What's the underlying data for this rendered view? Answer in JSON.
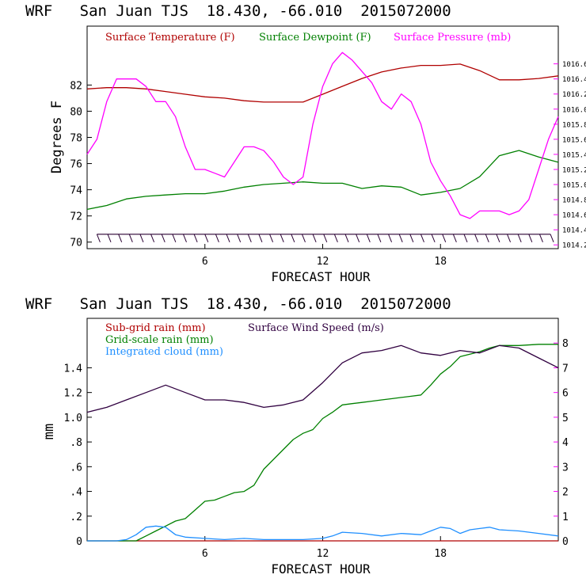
{
  "chart_data": [
    {
      "type": "line",
      "title": "WRF   San Juan TJS  18.430, -66.010  2015072000",
      "xlabel": "FORECAST HOUR",
      "ylabel": "Degrees F",
      "xlim": [
        0,
        24
      ],
      "ylim": [
        69.5,
        86.5
      ],
      "xticks": [
        6,
        12,
        18
      ],
      "yticks": [
        70,
        72,
        74,
        76,
        78,
        80,
        82
      ],
      "y2lim": [
        1014.15,
        1017.1
      ],
      "y2ticks": [
        1014.2,
        1014.4,
        1014.6,
        1014.8,
        1015.0,
        1015.2,
        1015.4,
        1015.6,
        1015.8,
        1016.0,
        1016.2,
        1016.4,
        1016.6
      ],
      "y2tick_labels": [
        "1014.2",
        "1014.4",
        "1014.6",
        "1014.8",
        "1015.0",
        "1015.2",
        "1015.4",
        "1015.6",
        "1015.8",
        "1016.0",
        "1016.2",
        "1016.4",
        "1016.6"
      ],
      "legend_placement": "top-left, horizontal",
      "series": [
        {
          "name": "Surface Temperature (F)",
          "color": "#b00000",
          "axis": "left",
          "x": [
            0,
            1,
            2,
            3,
            4,
            5,
            6,
            7,
            8,
            9,
            10,
            11,
            12,
            13,
            14,
            15,
            16,
            17,
            18,
            19,
            20,
            21,
            22,
            23,
            24
          ],
          "y": [
            81.7,
            81.8,
            81.8,
            81.7,
            81.5,
            81.3,
            81.1,
            81.0,
            80.8,
            80.7,
            80.7,
            80.7,
            81.3,
            81.9,
            82.5,
            83.0,
            83.3,
            83.5,
            83.5,
            83.6,
            83.1,
            82.4,
            82.4,
            82.5,
            82.7
          ]
        },
        {
          "name": "Surface Dewpoint (F)",
          "color": "#008000",
          "axis": "left",
          "x": [
            0,
            1,
            2,
            3,
            4,
            5,
            6,
            7,
            8,
            9,
            10,
            11,
            12,
            13,
            14,
            15,
            16,
            17,
            18,
            19,
            20,
            21,
            22,
            23,
            24
          ],
          "y": [
            72.5,
            72.8,
            73.3,
            73.5,
            73.6,
            73.7,
            73.7,
            73.9,
            74.2,
            74.4,
            74.5,
            74.6,
            74.5,
            74.5,
            74.1,
            74.3,
            74.2,
            73.6,
            73.8,
            74.1,
            75.0,
            76.6,
            77.0,
            76.5,
            76.1
          ]
        },
        {
          "name": "Surface Pressure (mb)",
          "color": "#ff00ff",
          "axis": "right",
          "x": [
            0,
            0.5,
            1,
            1.5,
            2,
            2.5,
            3,
            3.5,
            4,
            4.5,
            5,
            5.5,
            6,
            6.5,
            7,
            7.5,
            8,
            8.5,
            9,
            9.5,
            10,
            10.5,
            11,
            11.5,
            12,
            12.5,
            13,
            13.5,
            14,
            14.5,
            15,
            15.5,
            16,
            16.5,
            17,
            17.5,
            18,
            18.5,
            19,
            19.5,
            20,
            20.5,
            21,
            21.5,
            22,
            22.5,
            23,
            23.5,
            24
          ],
          "y": [
            1015.4,
            1015.6,
            1016.1,
            1016.4,
            1016.4,
            1016.4,
            1016.3,
            1016.1,
            1016.1,
            1015.9,
            1015.5,
            1015.2,
            1015.2,
            1015.15,
            1015.1,
            1015.3,
            1015.5,
            1015.5,
            1015.45,
            1015.3,
            1015.1,
            1015.0,
            1015.1,
            1015.8,
            1016.3,
            1016.6,
            1016.75,
            1016.65,
            1016.5,
            1016.35,
            1016.1,
            1016.0,
            1016.2,
            1016.1,
            1015.8,
            1015.3,
            1015.05,
            1014.85,
            1014.6,
            1014.55,
            1014.65,
            1014.65,
            1014.65,
            1014.6,
            1014.65,
            1014.8,
            1015.2,
            1015.6,
            1015.9
          ]
        }
      ],
      "wind_barbs": {
        "color": "#2a0033",
        "y": 70.6,
        "x_start": 0.5,
        "x_end": 23.6,
        "step": 0.55
      }
    },
    {
      "type": "line",
      "title": "WRF   San Juan TJS  18.430, -66.010  2015072000",
      "xlabel": "FORECAST HOUR",
      "ylabel": "mm",
      "xlim": [
        0,
        24
      ],
      "ylim": [
        0,
        1.8
      ],
      "xticks": [
        6,
        12,
        18
      ],
      "yticks": [
        0,
        0.2,
        0.4,
        0.6,
        0.8,
        1.0,
        1.2,
        1.4
      ],
      "ytick_labels": [
        "0",
        ".2",
        ".4",
        ".6",
        ".8",
        "1.0",
        "1.2",
        "1.4"
      ],
      "y2lim": [
        0,
        9
      ],
      "y2ticks": [
        0,
        1,
        2,
        3,
        4,
        5,
        6,
        7,
        8
      ],
      "y2tick_labels": [
        "0",
        "1",
        "2",
        "3",
        "4",
        "5",
        "6",
        "7",
        "8"
      ],
      "legend_placement": "top-left, two columns",
      "series": [
        {
          "name": "Sub-grid rain (mm)",
          "color": "#b00000",
          "axis": "left",
          "x": [
            0,
            24
          ],
          "y": [
            0,
            0
          ]
        },
        {
          "name": "Grid-scale rain (mm)",
          "color": "#008000",
          "axis": "left",
          "x": [
            0,
            2.5,
            3,
            3.5,
            4,
            4.5,
            5,
            5.5,
            6,
            6.5,
            7,
            7.5,
            8,
            8.5,
            9,
            9.5,
            10,
            10.5,
            11,
            11.5,
            12,
            12.5,
            13,
            13.5,
            14,
            14.5,
            15,
            15.5,
            16,
            16.5,
            17,
            17.5,
            18,
            18.5,
            19,
            19.5,
            20,
            20.5,
            21,
            22,
            23,
            24
          ],
          "y": [
            0,
            0,
            0.04,
            0.08,
            0.12,
            0.16,
            0.18,
            0.25,
            0.32,
            0.33,
            0.36,
            0.39,
            0.4,
            0.45,
            0.58,
            0.66,
            0.74,
            0.82,
            0.87,
            0.9,
            0.99,
            1.04,
            1.1,
            1.11,
            1.12,
            1.13,
            1.14,
            1.15,
            1.16,
            1.17,
            1.18,
            1.26,
            1.35,
            1.41,
            1.49,
            1.51,
            1.53,
            1.56,
            1.58,
            1.58,
            1.59,
            1.59
          ]
        },
        {
          "name": "Integrated cloud (mm)",
          "color": "#1f8fff",
          "axis": "left",
          "x": [
            0,
            1.5,
            2,
            2.5,
            3,
            3.5,
            4,
            4.5,
            5,
            6,
            7,
            8,
            9,
            10,
            11,
            12,
            12.5,
            13,
            14,
            15,
            16,
            17,
            17.5,
            18,
            18.5,
            19,
            19.5,
            20,
            20.5,
            21,
            22,
            23,
            24
          ],
          "y": [
            0,
            0,
            0.01,
            0.05,
            0.11,
            0.12,
            0.11,
            0.05,
            0.03,
            0.02,
            0.01,
            0.02,
            0.01,
            0.01,
            0.01,
            0.02,
            0.04,
            0.07,
            0.06,
            0.04,
            0.06,
            0.05,
            0.08,
            0.11,
            0.1,
            0.06,
            0.09,
            0.1,
            0.11,
            0.09,
            0.08,
            0.06,
            0.04
          ]
        },
        {
          "name": "Surface Wind Speed (m/s)",
          "color": "#300040",
          "axis": "right",
          "x": [
            0,
            1,
            2,
            3,
            4,
            5,
            6,
            7,
            8,
            9,
            10,
            11,
            12,
            13,
            14,
            15,
            16,
            17,
            18,
            19,
            20,
            21,
            22,
            23,
            24
          ],
          "y": [
            5.2,
            5.4,
            5.7,
            6.0,
            6.3,
            6.0,
            5.7,
            5.7,
            5.6,
            5.4,
            5.5,
            5.7,
            6.4,
            7.2,
            7.6,
            7.7,
            7.9,
            7.6,
            7.5,
            7.7,
            7.6,
            7.9,
            7.8,
            7.4,
            7.0
          ]
        }
      ]
    }
  ]
}
